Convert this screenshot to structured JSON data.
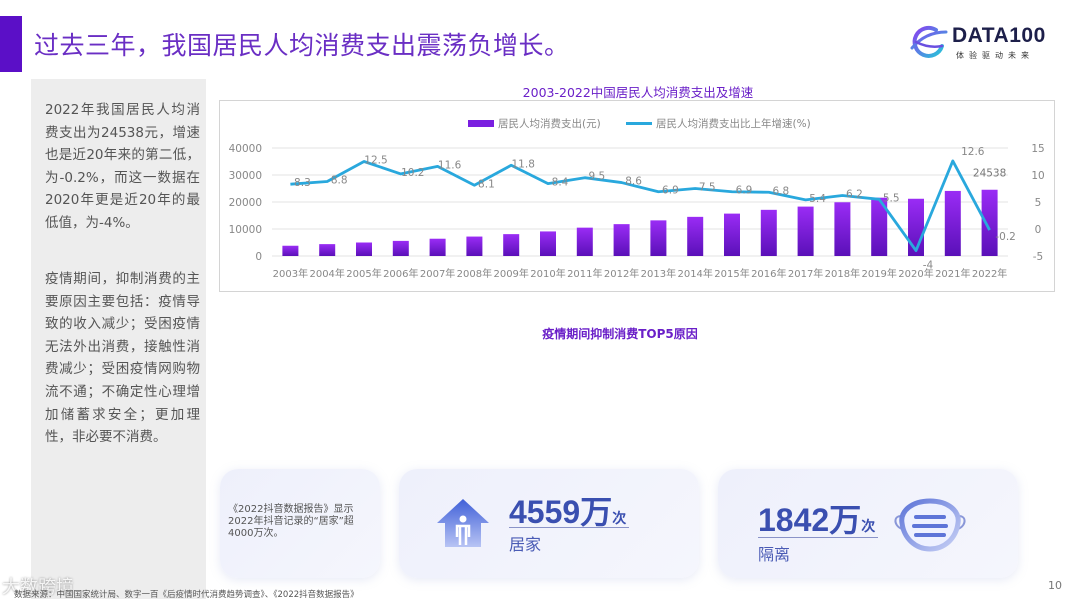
{
  "header": {
    "title": "过去三年，我国居民人均消费支出震荡负增长。",
    "accent_color": "#5b0fc7"
  },
  "logo": {
    "name": "DATA100",
    "tagline": "体验驱动未来"
  },
  "side_panel": {
    "paragraph1": "2022年我国居民人均消费支出为24538元，增速也是近20年来的第二低，为-0.2%，而这一数据在2020年更是近20年的最低值，为-4%。",
    "paragraph2": "疫情期间，抑制消费的主要原因主要包括：疫情导致的收入减少；受困疫情无法外出消费，接触性消费减少；受困疫情网购物流不通；不确定性心理增加储蓄求安全；更加理性，非必要不消费。"
  },
  "chart_data": {
    "type": "bar+line",
    "title": "2003-2022中国居民人均消费支出及增速",
    "categories": [
      "2003年",
      "2004年",
      "2005年",
      "2006年",
      "2007年",
      "2008年",
      "2009年",
      "2010年",
      "2011年",
      "2012年",
      "2013年",
      "2014年",
      "2015年",
      "2016年",
      "2017年",
      "2018年",
      "2019年",
      "2020年",
      "2021年",
      "2022年"
    ],
    "series": [
      {
        "name": "居民人均消费支出(元)",
        "type": "bar",
        "axis": "left",
        "color": "#7a1fe0",
        "values": [
          3800,
          4400,
          5000,
          5600,
          6400,
          7200,
          8100,
          9100,
          10500,
          11800,
          13200,
          14500,
          15700,
          17100,
          18300,
          19900,
          21600,
          21200,
          24100,
          24538
        ],
        "data_labels": {
          "2022年": "24538"
        }
      },
      {
        "name": "居民人均消费支出比上年增速(%)",
        "type": "line",
        "axis": "right",
        "color": "#29a8dd",
        "values": [
          8.3,
          8.8,
          12.5,
          10.2,
          11.6,
          8.1,
          11.8,
          8.4,
          9.5,
          8.6,
          6.9,
          7.5,
          6.9,
          6.8,
          5.4,
          6.2,
          5.5,
          -4,
          12.6,
          -0.2
        ],
        "labels": [
          "8.3",
          "8.8",
          "12.5",
          "10.2",
          "11.6",
          "8.1",
          "11.8",
          "8.4",
          "9.5",
          "8.6",
          "6.9",
          "7.5",
          "6.9",
          "6.8",
          "5.4",
          "6.2",
          "5.5",
          "-4",
          "12.6",
          "-0.2"
        ]
      }
    ],
    "left_axis": {
      "ticks": [
        "0",
        "10000",
        "20000",
        "30000",
        "40000"
      ],
      "range": [
        0,
        40000
      ]
    },
    "right_axis": {
      "ticks": [
        "-5",
        "0",
        "5",
        "10",
        "15"
      ],
      "range": [
        -5,
        15
      ]
    },
    "legend_position": "top",
    "grid": true
  },
  "top5": {
    "title": "疫情期间抑制消费TOP5原因"
  },
  "cards": {
    "note": "《2022抖音数据报告》显示2022年抖音记录的“居家”超4000万次。",
    "home": {
      "number": "4559万",
      "unit": "次",
      "label": "居家"
    },
    "isolation": {
      "number": "1842万",
      "unit": "次",
      "label": "隔离"
    }
  },
  "footer": {
    "source": "数据来源：中国国家统计局、数字一百《后疫情时代消费趋势调查》、《2022抖音数据报告》",
    "watermark": "大数跨境",
    "page_number": "10"
  }
}
